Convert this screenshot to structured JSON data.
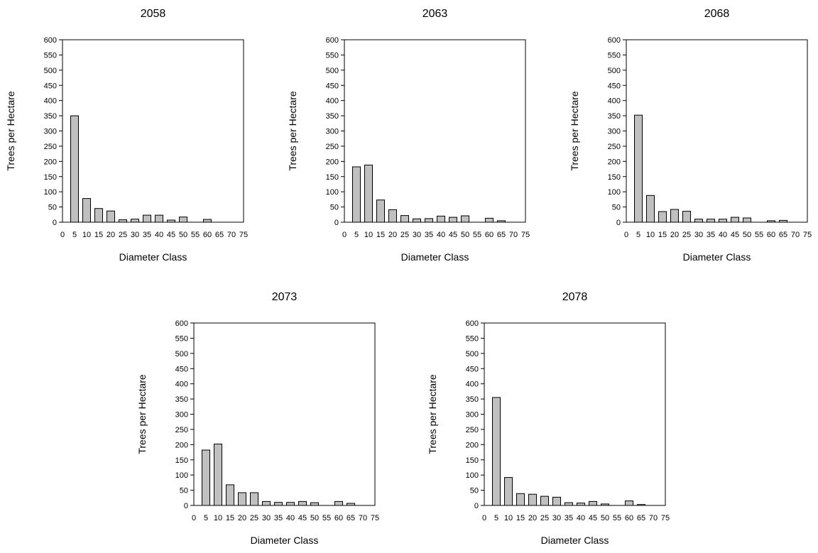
{
  "chart_data": [
    {
      "type": "bar",
      "title": "2058",
      "xlabel": "Diameter Class",
      "ylabel": "Trees per Hectare",
      "xlim": [
        0,
        75
      ],
      "ylim": [
        0,
        600
      ],
      "xticks": [
        0,
        5,
        10,
        15,
        20,
        25,
        30,
        35,
        40,
        45,
        50,
        55,
        60,
        65,
        70,
        75
      ],
      "yticks": [
        0,
        50,
        100,
        150,
        200,
        250,
        300,
        350,
        400,
        450,
        500,
        550,
        600
      ],
      "categories": [
        5,
        10,
        15,
        20,
        25,
        30,
        35,
        40,
        45,
        50,
        55,
        60,
        65
      ],
      "values": [
        350,
        78,
        45,
        37,
        8,
        10,
        23,
        23,
        7,
        17,
        0,
        9,
        0
      ],
      "grid": false,
      "bar_color": "#c0c0c0"
    },
    {
      "type": "bar",
      "title": "2063",
      "xlabel": "Diameter Class",
      "ylabel": "Trees per Hectare",
      "xlim": [
        0,
        75
      ],
      "ylim": [
        0,
        600
      ],
      "xticks": [
        0,
        5,
        10,
        15,
        20,
        25,
        30,
        35,
        40,
        45,
        50,
        55,
        60,
        65,
        70,
        75
      ],
      "yticks": [
        0,
        50,
        100,
        150,
        200,
        250,
        300,
        350,
        400,
        450,
        500,
        550,
        600
      ],
      "categories": [
        5,
        10,
        15,
        20,
        25,
        30,
        35,
        40,
        45,
        50,
        55,
        60,
        65
      ],
      "values": [
        182,
        188,
        73,
        41,
        22,
        11,
        12,
        20,
        16,
        21,
        0,
        13,
        5
      ],
      "grid": false,
      "bar_color": "#c0c0c0"
    },
    {
      "type": "bar",
      "title": "2068",
      "xlabel": "Diameter Class",
      "ylabel": "Trees per Hectare",
      "xlim": [
        0,
        75
      ],
      "ylim": [
        0,
        600
      ],
      "xticks": [
        0,
        5,
        10,
        15,
        20,
        25,
        30,
        35,
        40,
        45,
        50,
        55,
        60,
        65,
        70,
        75
      ],
      "yticks": [
        0,
        50,
        100,
        150,
        200,
        250,
        300,
        350,
        400,
        450,
        500,
        550,
        600
      ],
      "categories": [
        5,
        10,
        15,
        20,
        25,
        30,
        35,
        40,
        45,
        50,
        55,
        60,
        65
      ],
      "values": [
        352,
        88,
        35,
        42,
        36,
        10,
        10,
        10,
        16,
        14,
        0,
        5,
        6
      ],
      "grid": false,
      "bar_color": "#c0c0c0"
    },
    {
      "type": "bar",
      "title": "2073",
      "xlabel": "Diameter Class",
      "ylabel": "Trees per Hectare",
      "xlim": [
        0,
        75
      ],
      "ylim": [
        0,
        600
      ],
      "xticks": [
        0,
        5,
        10,
        15,
        20,
        25,
        30,
        35,
        40,
        45,
        50,
        55,
        60,
        65,
        70,
        75
      ],
      "yticks": [
        0,
        50,
        100,
        150,
        200,
        250,
        300,
        350,
        400,
        450,
        500,
        550,
        600
      ],
      "categories": [
        5,
        10,
        15,
        20,
        25,
        30,
        35,
        40,
        45,
        50,
        55,
        60,
        65
      ],
      "values": [
        182,
        202,
        68,
        42,
        42,
        13,
        10,
        10,
        13,
        9,
        0,
        13,
        7
      ],
      "grid": false,
      "bar_color": "#c0c0c0"
    },
    {
      "type": "bar",
      "title": "2078",
      "xlabel": "Diameter Class",
      "ylabel": "Trees per Hectare",
      "xlim": [
        0,
        75
      ],
      "ylim": [
        0,
        600
      ],
      "xticks": [
        0,
        5,
        10,
        15,
        20,
        25,
        30,
        35,
        40,
        45,
        50,
        55,
        60,
        65,
        70,
        75
      ],
      "yticks": [
        0,
        50,
        100,
        150,
        200,
        250,
        300,
        350,
        400,
        450,
        500,
        550,
        600
      ],
      "categories": [
        5,
        10,
        15,
        20,
        25,
        30,
        35,
        40,
        45,
        50,
        55,
        60,
        65
      ],
      "values": [
        355,
        92,
        39,
        37,
        30,
        27,
        9,
        8,
        13,
        5,
        0,
        15,
        3
      ],
      "grid": false,
      "bar_color": "#c0c0c0"
    }
  ]
}
